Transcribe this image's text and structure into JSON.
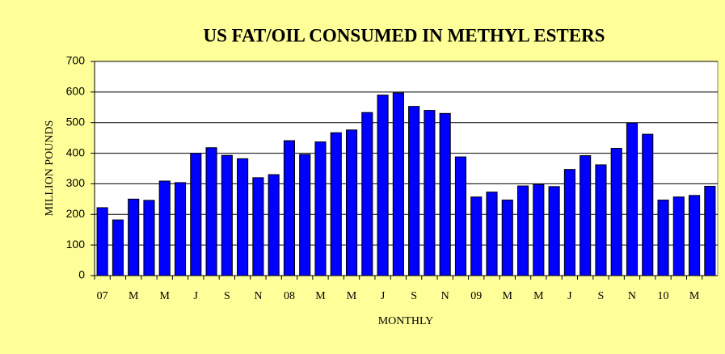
{
  "chart_data": {
    "type": "bar",
    "title": "US FAT/OIL CONSUMED IN METHYL ESTERS",
    "x_label": "MONTHLY",
    "y_label": "MILLION POUNDS",
    "categories": [
      "07",
      null,
      "M",
      null,
      "M",
      null,
      "J",
      null,
      "S",
      null,
      "N",
      null,
      "08",
      null,
      "M",
      null,
      "M",
      null,
      "J",
      null,
      "S",
      null,
      "N",
      null,
      "09",
      null,
      "M",
      null,
      "M",
      null,
      "J",
      null,
      "S",
      null,
      "N",
      null,
      "10",
      null,
      "M",
      null
    ],
    "values": [
      222,
      182,
      250,
      246,
      309,
      304,
      400,
      418,
      393,
      382,
      320,
      330,
      441,
      396,
      437,
      467,
      476,
      533,
      590,
      597,
      553,
      540,
      530,
      388,
      257,
      273,
      247,
      293,
      298,
      291,
      347,
      392,
      362,
      416,
      499,
      462,
      247,
      257,
      262,
      292
    ],
    "color": "#0000ff",
    "ylim": [
      0,
      700
    ],
    "yticks": [
      0,
      100,
      200,
      300,
      400,
      500,
      600,
      700
    ],
    "grid": true
  }
}
